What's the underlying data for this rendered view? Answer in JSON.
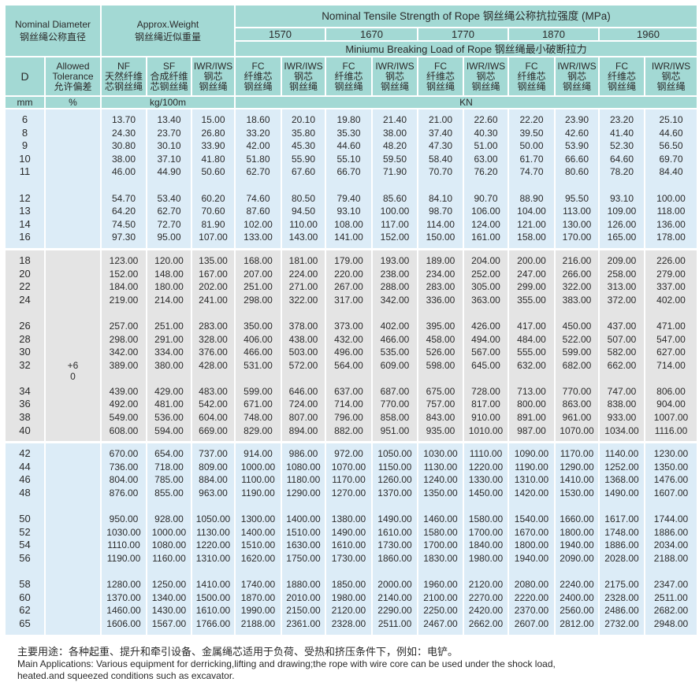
{
  "header": {
    "nominal_diameter": "Nominal Diameter",
    "nominal_diameter_zh": "钢丝绳公称直径",
    "approx_weight": "Approx.Weight",
    "approx_weight_zh": "钢丝绳近似重量",
    "tensile_title": "Nominal Tensile Strength of Rope  钢丝绳公称抗拉强度 (MPa)",
    "grades": [
      "1570",
      "1670",
      "1770",
      "1870",
      "1960"
    ],
    "breaking_title": "Miniumu Breaking Load of Rope  钢丝绳最小破断拉力",
    "columns": [
      [
        "D"
      ],
      [
        "Allowed",
        "Tolerance",
        "允许偏差"
      ],
      [
        "NF",
        "天然纤维",
        "芯钢丝绳"
      ],
      [
        "SF",
        "合成纤维",
        "芯钢丝绳"
      ],
      [
        "IWR/IWS",
        "钢芯",
        "钢丝绳"
      ],
      [
        "FC",
        "纤维芯",
        "钢丝绳"
      ],
      [
        "IWR/IWS",
        "钢芯",
        "钢丝绳"
      ],
      [
        "FC",
        "纤维芯",
        "钢丝绳"
      ],
      [
        "IWR/IWS",
        "钢芯",
        "钢丝绳"
      ],
      [
        "FC",
        "纤维芯",
        "钢丝绳"
      ],
      [
        "IWR/IWS",
        "钢芯",
        "钢丝绳"
      ],
      [
        "FC",
        "纤维芯",
        "钢丝绳"
      ],
      [
        "IWR/IWS",
        "钢芯",
        "钢丝绳"
      ],
      [
        "FC",
        "纤维芯",
        "钢丝绳"
      ],
      [
        "IWR/IWS",
        "钢芯",
        "钢丝绳"
      ]
    ],
    "units": {
      "d": "mm",
      "tolerance": "%",
      "weight": "kg/100m",
      "load": "KN"
    }
  },
  "tolerance": {
    "upper": "+6",
    "lower": "0"
  },
  "colors": {
    "header_bg": "#a3d9d4",
    "block_blue": "#dcecf7",
    "block_gray": "#e4e4e4"
  },
  "blocks": [
    {
      "style": "blue",
      "groups": [
        [
          [
            "6",
            "13.70",
            "13.40",
            "15.00",
            "18.60",
            "20.10",
            "19.80",
            "21.40",
            "21.00",
            "22.60",
            "22.20",
            "23.90",
            "23.20",
            "25.10"
          ],
          [
            "8",
            "24.30",
            "23.70",
            "26.80",
            "33.20",
            "35.80",
            "35.30",
            "38.00",
            "37.40",
            "40.30",
            "39.50",
            "42.60",
            "41.40",
            "44.60"
          ],
          [
            "9",
            "30.80",
            "30.10",
            "33.90",
            "42.00",
            "45.30",
            "44.60",
            "48.20",
            "47.30",
            "51.00",
            "50.00",
            "53.90",
            "52.30",
            "56.50"
          ],
          [
            "10",
            "38.00",
            "37.10",
            "41.80",
            "51.80",
            "55.90",
            "55.10",
            "59.50",
            "58.40",
            "63.00",
            "61.70",
            "66.60",
            "64.60",
            "69.70"
          ],
          [
            "11",
            "46.00",
            "44.90",
            "50.60",
            "62.70",
            "67.60",
            "66.70",
            "71.90",
            "70.70",
            "76.20",
            "74.70",
            "80.60",
            "78.20",
            "84.40"
          ]
        ],
        [
          [
            "12",
            "54.70",
            "53.40",
            "60.20",
            "74.60",
            "80.50",
            "79.40",
            "85.60",
            "84.10",
            "90.70",
            "88.90",
            "95.50",
            "93.10",
            "100.00"
          ],
          [
            "13",
            "64.20",
            "62.70",
            "70.60",
            "87.60",
            "94.50",
            "93.10",
            "100.00",
            "98.70",
            "106.00",
            "104.00",
            "113.00",
            "109.00",
            "118.00"
          ],
          [
            "14",
            "74.50",
            "72.70",
            "81.90",
            "102.00",
            "110.00",
            "108.00",
            "117.00",
            "114.00",
            "124.00",
            "121.00",
            "130.00",
            "126.00",
            "136.00"
          ],
          [
            "16",
            "97.30",
            "95.00",
            "107.00",
            "133.00",
            "143.00",
            "141.00",
            "152.00",
            "150.00",
            "161.00",
            "158.00",
            "170.00",
            "165.00",
            "178.00"
          ]
        ]
      ]
    },
    {
      "style": "gray",
      "groups": [
        [
          [
            "18",
            "123.00",
            "120.00",
            "135.00",
            "168.00",
            "181.00",
            "179.00",
            "193.00",
            "189.00",
            "204.00",
            "200.00",
            "216.00",
            "209.00",
            "226.00"
          ],
          [
            "20",
            "152.00",
            "148.00",
            "167.00",
            "207.00",
            "224.00",
            "220.00",
            "238.00",
            "234.00",
            "252.00",
            "247.00",
            "266.00",
            "258.00",
            "279.00"
          ],
          [
            "22",
            "184.00",
            "180.00",
            "202.00",
            "251.00",
            "271.00",
            "267.00",
            "288.00",
            "283.00",
            "305.00",
            "299.00",
            "322.00",
            "313.00",
            "337.00"
          ],
          [
            "24",
            "219.00",
            "214.00",
            "241.00",
            "298.00",
            "322.00",
            "317.00",
            "342.00",
            "336.00",
            "363.00",
            "355.00",
            "383.00",
            "372.00",
            "402.00"
          ]
        ],
        [
          [
            "26",
            "257.00",
            "251.00",
            "283.00",
            "350.00",
            "378.00",
            "373.00",
            "402.00",
            "395.00",
            "426.00",
            "417.00",
            "450.00",
            "437.00",
            "471.00"
          ],
          [
            "28",
            "298.00",
            "291.00",
            "328.00",
            "406.00",
            "438.00",
            "432.00",
            "466.00",
            "458.00",
            "494.00",
            "484.00",
            "522.00",
            "507.00",
            "547.00"
          ],
          [
            "30",
            "342.00",
            "334.00",
            "376.00",
            "466.00",
            "503.00",
            "496.00",
            "535.00",
            "526.00",
            "567.00",
            "555.00",
            "599.00",
            "582.00",
            "627.00"
          ],
          [
            "32",
            "389.00",
            "380.00",
            "428.00",
            "531.00",
            "572.00",
            "564.00",
            "609.00",
            "598.00",
            "645.00",
            "632.00",
            "682.00",
            "662.00",
            "714.00"
          ]
        ],
        [
          [
            "34",
            "439.00",
            "429.00",
            "483.00",
            "599.00",
            "646.00",
            "637.00",
            "687.00",
            "675.00",
            "728.00",
            "713.00",
            "770.00",
            "747.00",
            "806.00"
          ],
          [
            "36",
            "492.00",
            "481.00",
            "542.00",
            "671.00",
            "724.00",
            "714.00",
            "770.00",
            "757.00",
            "817.00",
            "800.00",
            "863.00",
            "838.00",
            "904.00"
          ],
          [
            "38",
            "549.00",
            "536.00",
            "604.00",
            "748.00",
            "807.00",
            "796.00",
            "858.00",
            "843.00",
            "910.00",
            "891.00",
            "961.00",
            "933.00",
            "1007.00"
          ],
          [
            "40",
            "608.00",
            "594.00",
            "669.00",
            "829.00",
            "894.00",
            "882.00",
            "951.00",
            "935.00",
            "1010.00",
            "987.00",
            "1070.00",
            "1034.00",
            "1116.00"
          ]
        ]
      ]
    },
    {
      "style": "blue",
      "groups": [
        [
          [
            "42",
            "670.00",
            "654.00",
            "737.00",
            "914.00",
            "986.00",
            "972.00",
            "1050.00",
            "1030.00",
            "1110.00",
            "1090.00",
            "1170.00",
            "1140.00",
            "1230.00"
          ],
          [
            "44",
            "736.00",
            "718.00",
            "809.00",
            "1000.00",
            "1080.00",
            "1070.00",
            "1150.00",
            "1130.00",
            "1220.00",
            "1190.00",
            "1290.00",
            "1252.00",
            "1350.00"
          ],
          [
            "46",
            "804.00",
            "785.00",
            "884.00",
            "1100.00",
            "1180.00",
            "1170.00",
            "1260.00",
            "1240.00",
            "1330.00",
            "1310.00",
            "1410.00",
            "1368.00",
            "1476.00"
          ],
          [
            "48",
            "876.00",
            "855.00",
            "963.00",
            "1190.00",
            "1290.00",
            "1270.00",
            "1370.00",
            "1350.00",
            "1450.00",
            "1420.00",
            "1530.00",
            "1490.00",
            "1607.00"
          ]
        ],
        [
          [
            "50",
            "950.00",
            "928.00",
            "1050.00",
            "1300.00",
            "1400.00",
            "1380.00",
            "1490.00",
            "1460.00",
            "1580.00",
            "1540.00",
            "1660.00",
            "1617.00",
            "1744.00"
          ],
          [
            "52",
            "1030.00",
            "1000.00",
            "1130.00",
            "1400.00",
            "1510.00",
            "1490.00",
            "1610.00",
            "1580.00",
            "1700.00",
            "1670.00",
            "1800.00",
            "1748.00",
            "1886.00"
          ],
          [
            "54",
            "1110.00",
            "1080.00",
            "1220.00",
            "1510.00",
            "1630.00",
            "1610.00",
            "1730.00",
            "1700.00",
            "1840.00",
            "1800.00",
            "1940.00",
            "1886.00",
            "2034.00"
          ],
          [
            "56",
            "1190.00",
            "1160.00",
            "1310.00",
            "1620.00",
            "1750.00",
            "1730.00",
            "1860.00",
            "1830.00",
            "1980.00",
            "1940.00",
            "2090.00",
            "2028.00",
            "2188.00"
          ]
        ],
        [
          [
            "58",
            "1280.00",
            "1250.00",
            "1410.00",
            "1740.00",
            "1880.00",
            "1850.00",
            "2000.00",
            "1960.00",
            "2120.00",
            "2080.00",
            "2240.00",
            "2175.00",
            "2347.00"
          ],
          [
            "60",
            "1370.00",
            "1340.00",
            "1500.00",
            "1870.00",
            "2010.00",
            "1980.00",
            "2140.00",
            "2100.00",
            "2270.00",
            "2220.00",
            "2400.00",
            "2328.00",
            "2511.00"
          ],
          [
            "62",
            "1460.00",
            "1430.00",
            "1610.00",
            "1990.00",
            "2150.00",
            "2120.00",
            "2290.00",
            "2250.00",
            "2420.00",
            "2370.00",
            "2560.00",
            "2486.00",
            "2682.00"
          ],
          [
            "65",
            "1606.00",
            "1567.00",
            "1766.00",
            "2188.00",
            "2361.00",
            "2328.00",
            "2511.00",
            "2467.00",
            "2662.00",
            "2607.00",
            "2812.00",
            "2732.00",
            "2948.00"
          ]
        ]
      ]
    }
  ],
  "notes": {
    "zh": "主要用途：各种起重、提升和牵引设备、金属绳芯适用于负荷、受热和挤压条件下，例如：电铲。",
    "en_line1": "Main Applications: Various equipment for derricking,lifting and drawing;the rope with wire core can be used under the shock load,",
    "en_line2": "heated.and squeezed conditions such as excavator."
  }
}
